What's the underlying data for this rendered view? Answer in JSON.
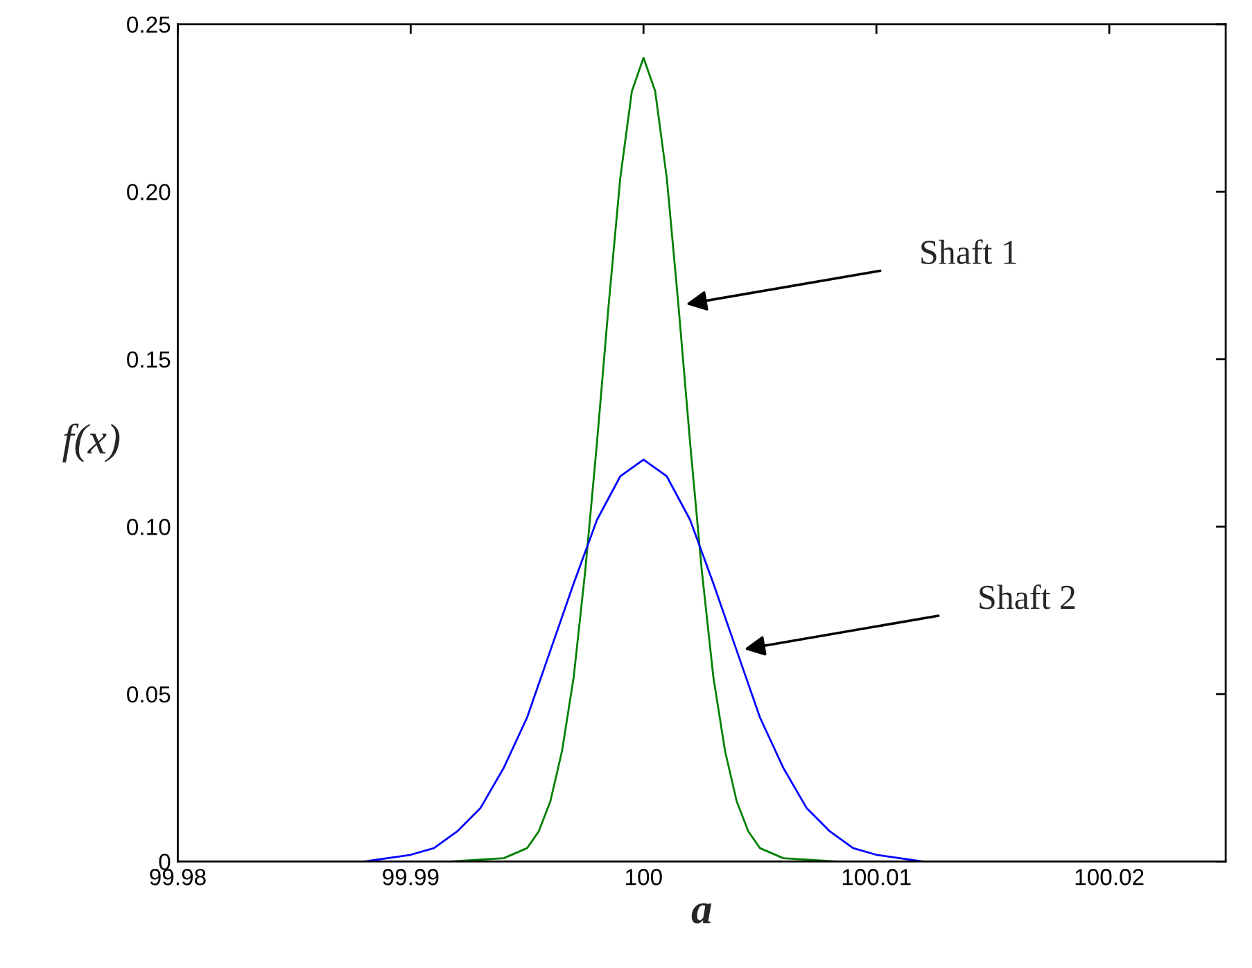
{
  "chart_data": {
    "type": "line",
    "xlabel": "a",
    "ylabel": "f(x)",
    "xlim": [
      99.98,
      100.025
    ],
    "xticks": [
      99.98,
      99.99,
      100,
      100.01,
      100.02
    ],
    "ylim": [
      0,
      0.25
    ],
    "yticks": [
      0,
      0.05,
      {
        "value": 0.1,
        "label": "0.10"
      },
      0.15,
      {
        "value": 0.2,
        "label": "0.20"
      },
      0.25
    ],
    "grid": false,
    "legend": false,
    "marker": "none",
    "line_style": "solid",
    "series": [
      {
        "color": "#008000",
        "x": [
          99.9917,
          99.994,
          99.995,
          99.9955,
          99.996,
          99.9965,
          99.997,
          99.9975,
          99.998,
          99.9985,
          99.999,
          99.9995,
          100,
          100.0005,
          100.001,
          100.0015,
          100.002,
          100.0025,
          100.003,
          100.0035,
          100.004,
          100.0045,
          100.005,
          100.006,
          100.0083
        ],
        "values": [
          0,
          0.001,
          0.004,
          0.009,
          0.018,
          0.033,
          0.055,
          0.087,
          0.125,
          0.166,
          0.204,
          0.23,
          0.24,
          0.23,
          0.204,
          0.166,
          0.125,
          0.087,
          0.055,
          0.033,
          0.018,
          0.009,
          0.004,
          0.001,
          0
        ]
      },
      {
        "color": "#0000ff",
        "x": [
          99.9833,
          99.988,
          99.99,
          99.991,
          99.992,
          99.993,
          99.994,
          99.995,
          99.996,
          99.997,
          99.998,
          99.999,
          100,
          100.001,
          100.002,
          100.003,
          100.004,
          100.005,
          100.006,
          100.007,
          100.008,
          100.009,
          100.01,
          100.012,
          100.0167
        ],
        "values": [
          0,
          0,
          0.002,
          0.004,
          0.009,
          0.016,
          0.028,
          0.043,
          0.063,
          0.083,
          0.102,
          0.115,
          0.12,
          0.115,
          0.102,
          0.083,
          0.063,
          0.043,
          0.028,
          0.016,
          0.009,
          0.004,
          0.002,
          0,
          0
        ]
      }
    ],
    "annotations": [
      {
        "text": "Shaft 1",
        "x": 100.0015,
        "y": 0.166
      },
      {
        "text": "Shaft 2",
        "x": 100.004,
        "y": 0.063
      }
    ]
  }
}
